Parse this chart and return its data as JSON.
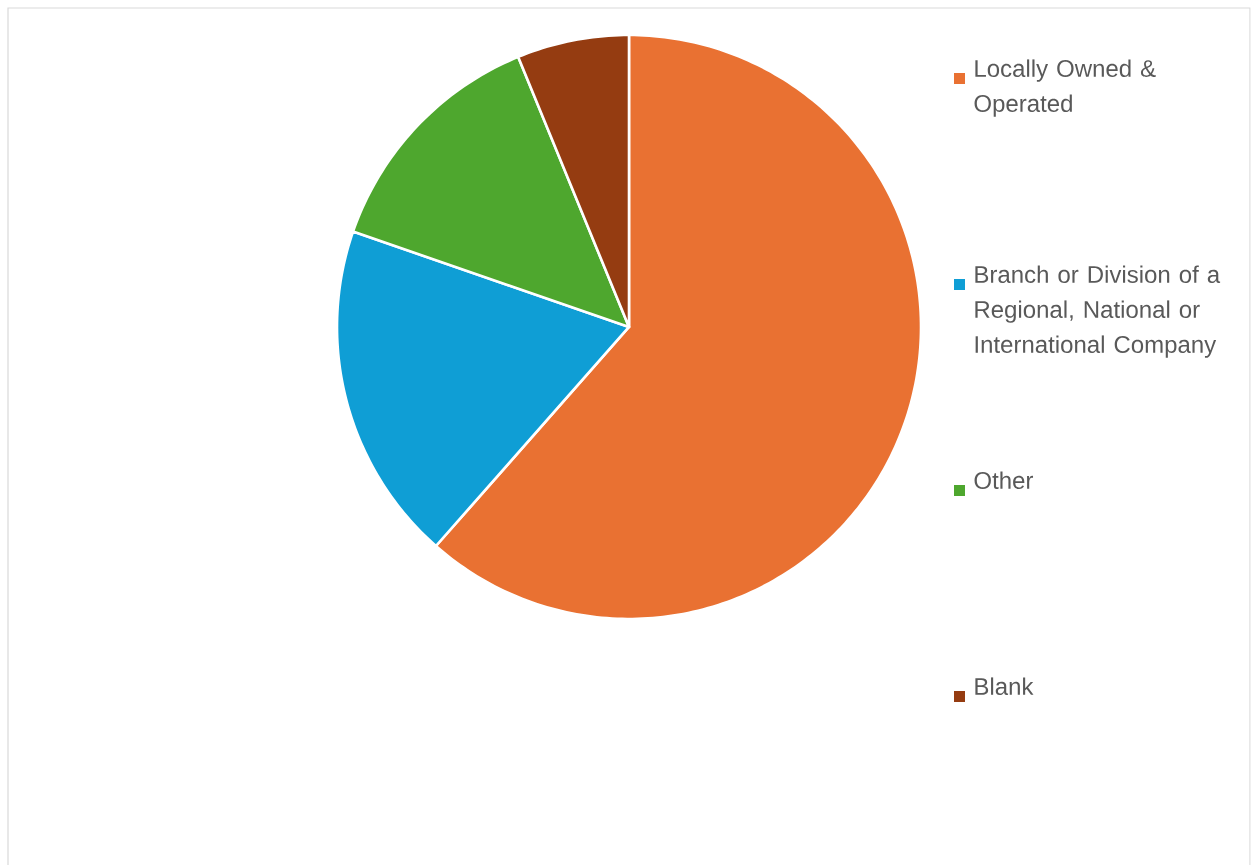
{
  "chart_data": {
    "type": "pie",
    "categories": [
      "Locally Owned & Operated",
      "Branch or Division of a Regional, National or International Company",
      "Other",
      "Blank"
    ],
    "values": [
      61.5,
      18.8,
      13.5,
      6.2
    ],
    "colors": [
      "#e97132",
      "#0f9ed5",
      "#4ea72e",
      "#953c11"
    ],
    "legend": "right"
  }
}
